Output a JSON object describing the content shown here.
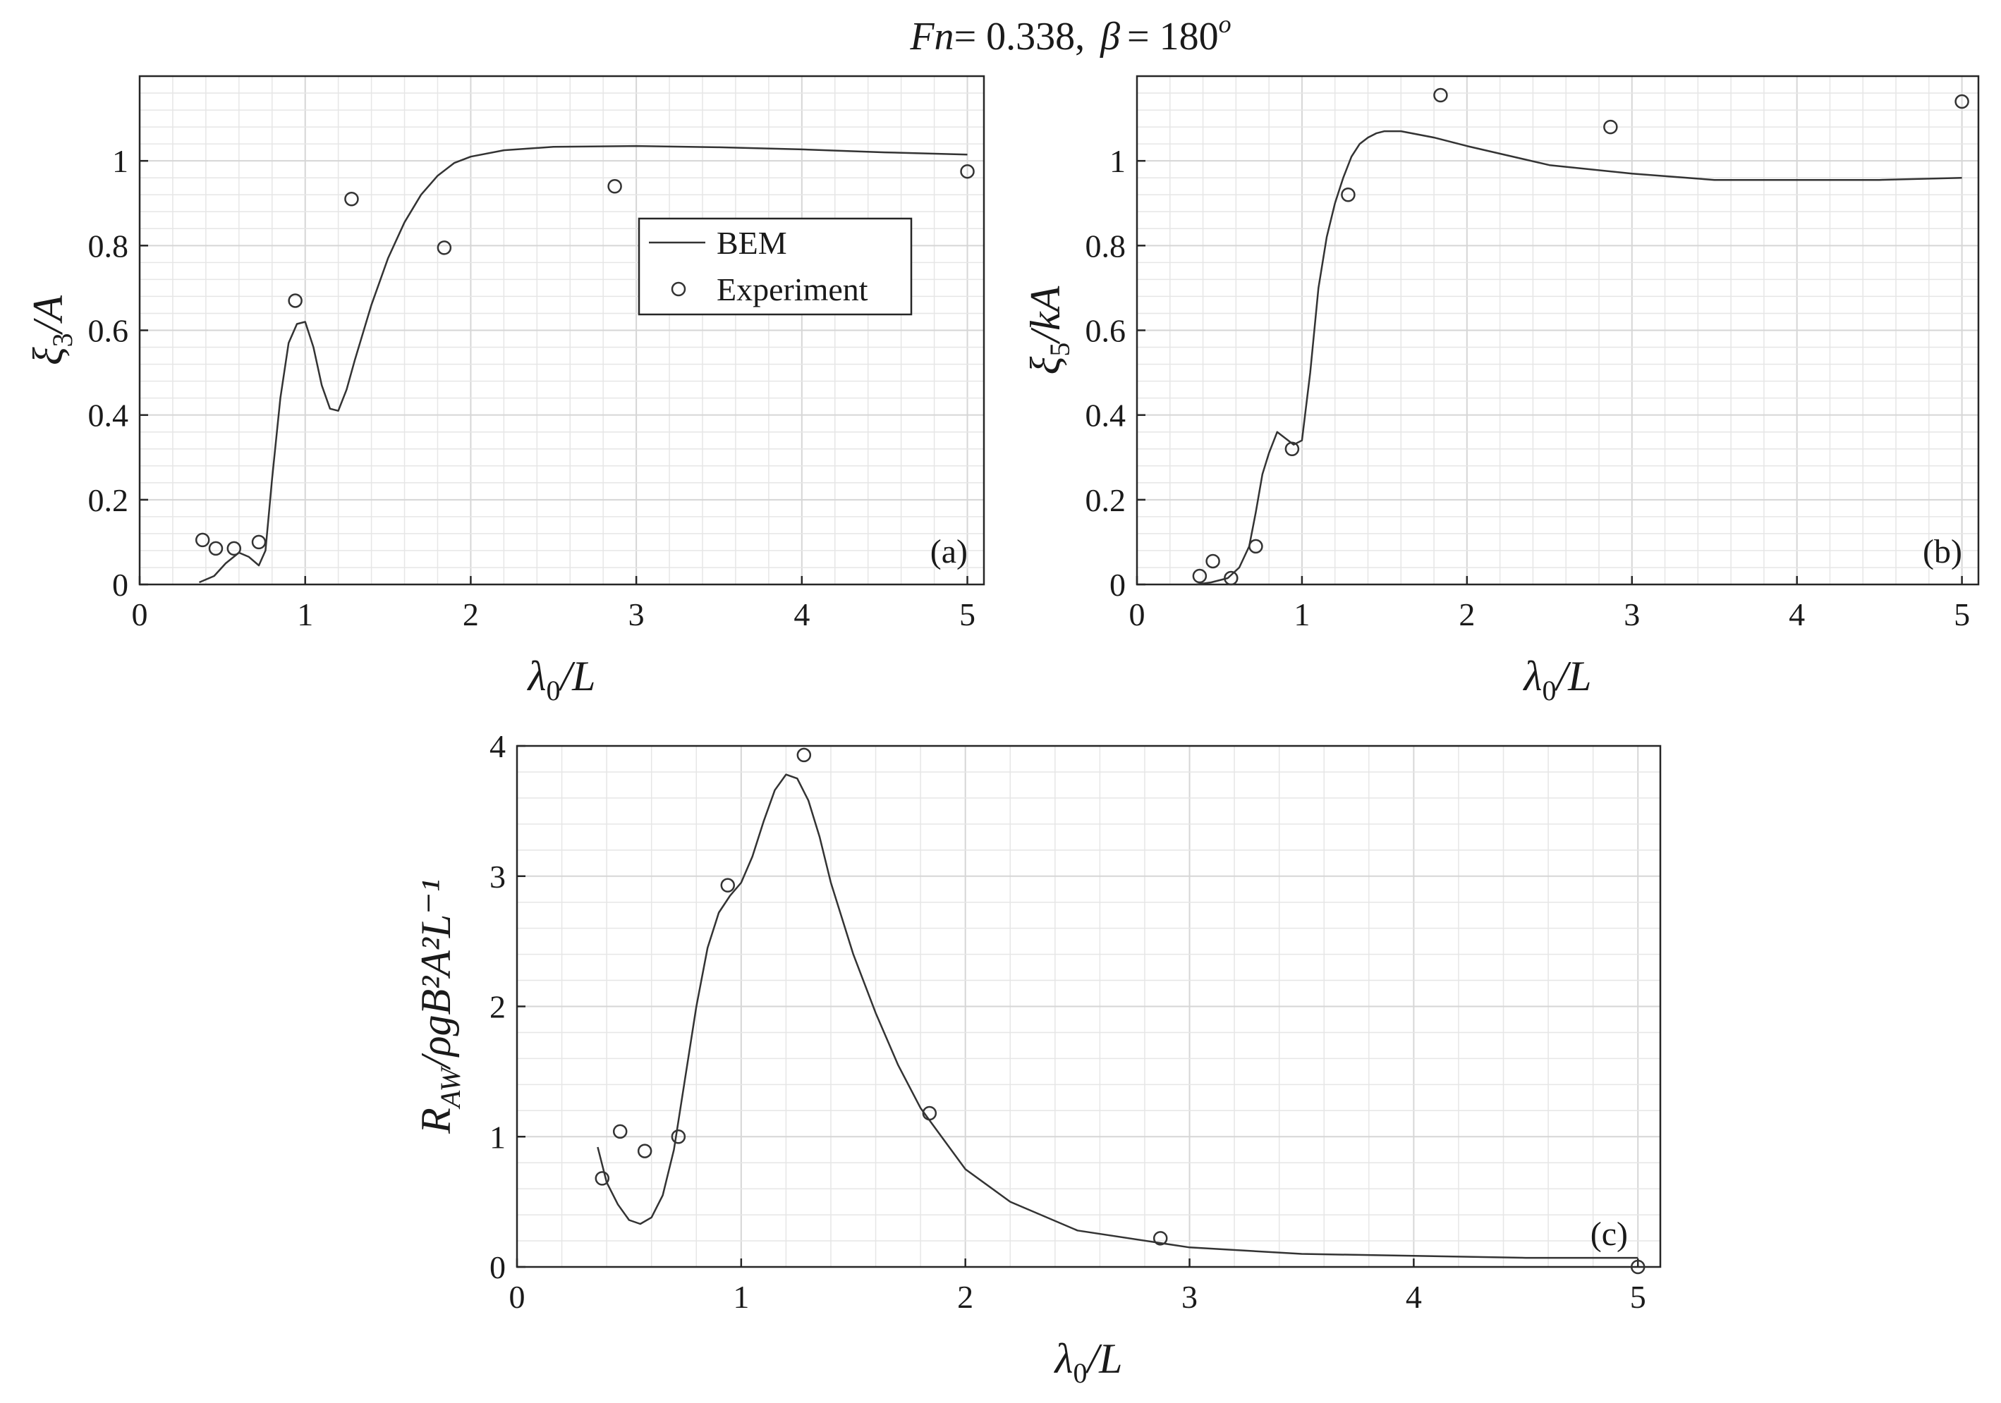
{
  "figure_title": {
    "fn_symbol": "Fn",
    "fn_value": "= 0.338,",
    "beta_symbol": "β",
    "beta_value": "= 180",
    "beta_sup": "o"
  },
  "legend": {
    "line_label": "BEM",
    "marker_label": "Experiment"
  },
  "colors": {
    "line": "#333333",
    "marker": "#333333",
    "grid_minor": "#e6e6e6",
    "grid_major": "#d6d6d6",
    "axes": "#262626"
  },
  "chart_data": [
    {
      "type": "line",
      "panel": "(a)",
      "xlabel": {
        "main": "λ",
        "sub": "0",
        "rest": "/L"
      },
      "ylabel": {
        "main": "ξ",
        "sub": "3",
        "rest": "/A"
      },
      "xlim": [
        0,
        5.1
      ],
      "ylim": [
        0,
        1.2
      ],
      "xticks": [
        0,
        1,
        2,
        3,
        4,
        5
      ],
      "yticks": [
        0,
        0.2,
        0.4,
        0.6,
        0.8,
        1
      ],
      "xtick_labels": [
        "0",
        "1",
        "2",
        "3",
        "4",
        "5"
      ],
      "ytick_labels": [
        "0",
        "0.2",
        "0.4",
        "0.6",
        "0.8",
        "1"
      ],
      "grid": "minor",
      "legend_position": "center-right",
      "series": [
        {
          "name": "BEM",
          "style": "line",
          "x": [
            0.36,
            0.45,
            0.52,
            0.6,
            0.66,
            0.72,
            0.76,
            0.8,
            0.85,
            0.9,
            0.95,
            1.0,
            1.05,
            1.1,
            1.15,
            1.2,
            1.25,
            1.3,
            1.4,
            1.5,
            1.6,
            1.7,
            1.8,
            1.9,
            2.0,
            2.2,
            2.5,
            3.0,
            3.5,
            4.0,
            4.5,
            5.0
          ],
          "y": [
            0.005,
            0.02,
            0.05,
            0.075,
            0.065,
            0.045,
            0.08,
            0.25,
            0.44,
            0.57,
            0.615,
            0.62,
            0.56,
            0.47,
            0.415,
            0.41,
            0.46,
            0.53,
            0.66,
            0.77,
            0.855,
            0.92,
            0.965,
            0.995,
            1.01,
            1.025,
            1.033,
            1.035,
            1.032,
            1.027,
            1.02,
            1.015
          ]
        },
        {
          "name": "Experiment",
          "style": "marker",
          "x": [
            0.38,
            0.46,
            0.57,
            0.72,
            0.94,
            1.28,
            1.84,
            2.87,
            5.0
          ],
          "y": [
            0.105,
            0.085,
            0.085,
            0.1,
            0.67,
            0.91,
            0.795,
            0.94,
            0.975
          ]
        }
      ]
    },
    {
      "type": "line",
      "panel": "(b)",
      "xlabel": {
        "main": "λ",
        "sub": "0",
        "rest": "/L"
      },
      "ylabel": {
        "main": "ξ",
        "sub": "5",
        "rest": "/kA"
      },
      "xlim": [
        0,
        5.1
      ],
      "ylim": [
        0,
        1.2
      ],
      "xticks": [
        0,
        1,
        2,
        3,
        4,
        5
      ],
      "yticks": [
        0,
        0.2,
        0.4,
        0.6,
        0.8,
        1
      ],
      "xtick_labels": [
        "0",
        "1",
        "2",
        "3",
        "4",
        "5"
      ],
      "ytick_labels": [
        "0",
        "0.2",
        "0.4",
        "0.6",
        "0.8",
        "1"
      ],
      "grid": "minor",
      "series": [
        {
          "name": "BEM",
          "style": "line",
          "x": [
            0.36,
            0.45,
            0.55,
            0.62,
            0.68,
            0.72,
            0.76,
            0.8,
            0.85,
            0.9,
            0.95,
            1.0,
            1.05,
            1.1,
            1.15,
            1.2,
            1.25,
            1.3,
            1.35,
            1.4,
            1.45,
            1.5,
            1.6,
            1.8,
            2.0,
            2.5,
            3.0,
            3.5,
            4.0,
            4.5,
            5.0
          ],
          "y": [
            0.0,
            0.005,
            0.015,
            0.04,
            0.09,
            0.17,
            0.26,
            0.31,
            0.36,
            0.345,
            0.33,
            0.34,
            0.5,
            0.7,
            0.82,
            0.9,
            0.96,
            1.01,
            1.04,
            1.055,
            1.065,
            1.07,
            1.07,
            1.055,
            1.035,
            0.99,
            0.97,
            0.955,
            0.955,
            0.955,
            0.96
          ]
        },
        {
          "name": "Experiment",
          "style": "marker",
          "x": [
            0.38,
            0.46,
            0.57,
            0.72,
            0.94,
            1.28,
            1.84,
            2.87,
            5.0
          ],
          "y": [
            0.02,
            0.055,
            0.015,
            0.09,
            0.32,
            0.92,
            1.155,
            1.08,
            1.14
          ]
        }
      ]
    },
    {
      "type": "line",
      "panel": "(c)",
      "xlabel": {
        "main": "λ",
        "sub": "0",
        "rest": "/L"
      },
      "ylabel": {
        "main": "R",
        "sub": "AW",
        "rest": "/ρgB²A²L⁻¹"
      },
      "xlim": [
        0,
        5.1
      ],
      "ylim": [
        0,
        4
      ],
      "xticks": [
        0,
        1,
        2,
        3,
        4,
        5
      ],
      "yticks": [
        0,
        1,
        2,
        3,
        4
      ],
      "xtick_labels": [
        "0",
        "1",
        "2",
        "3",
        "4",
        "5"
      ],
      "ytick_labels": [
        "0",
        "1",
        "2",
        "3",
        "4"
      ],
      "grid": "minor",
      "series": [
        {
          "name": "BEM",
          "style": "line",
          "x": [
            0.36,
            0.4,
            0.45,
            0.5,
            0.55,
            0.6,
            0.65,
            0.7,
            0.75,
            0.8,
            0.85,
            0.9,
            0.95,
            1.0,
            1.05,
            1.1,
            1.15,
            1.2,
            1.25,
            1.3,
            1.35,
            1.4,
            1.5,
            1.6,
            1.7,
            1.8,
            2.0,
            2.2,
            2.5,
            3.0,
            3.5,
            4.0,
            4.5,
            5.0
          ],
          "y": [
            0.92,
            0.65,
            0.48,
            0.36,
            0.33,
            0.38,
            0.55,
            0.9,
            1.45,
            2.0,
            2.45,
            2.72,
            2.85,
            2.95,
            3.15,
            3.42,
            3.66,
            3.78,
            3.75,
            3.58,
            3.3,
            2.95,
            2.4,
            1.95,
            1.55,
            1.22,
            0.75,
            0.5,
            0.28,
            0.15,
            0.1,
            0.085,
            0.07,
            0.07
          ]
        },
        {
          "name": "Experiment",
          "style": "marker",
          "x": [
            0.38,
            0.46,
            0.57,
            0.72,
            0.94,
            1.28,
            1.84,
            2.87,
            5.0
          ],
          "y": [
            0.68,
            1.04,
            0.89,
            1.0,
            2.93,
            3.93,
            1.18,
            0.22,
            0.0
          ]
        }
      ]
    }
  ]
}
